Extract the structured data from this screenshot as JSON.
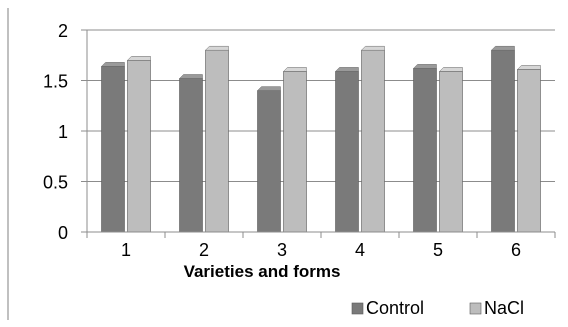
{
  "chart_data": {
    "type": "bar",
    "categories": [
      "1",
      "2",
      "3",
      "4",
      "5",
      "6"
    ],
    "series": [
      {
        "name": "Control",
        "values": [
          1.64,
          1.52,
          1.4,
          1.59,
          1.62,
          1.8
        ],
        "color": "#7a7a7a"
      },
      {
        "name": "NaCl",
        "values": [
          1.7,
          1.8,
          1.59,
          1.8,
          1.59,
          1.61
        ],
        "color": "#bdbdbd"
      }
    ],
    "xlabel": "Varieties and forms",
    "ylabel": "",
    "ylim": [
      0,
      2
    ],
    "yticks": [
      "0",
      "0.5",
      "1",
      "1.5",
      "2"
    ],
    "grid": true,
    "legend": "bottom-right"
  }
}
